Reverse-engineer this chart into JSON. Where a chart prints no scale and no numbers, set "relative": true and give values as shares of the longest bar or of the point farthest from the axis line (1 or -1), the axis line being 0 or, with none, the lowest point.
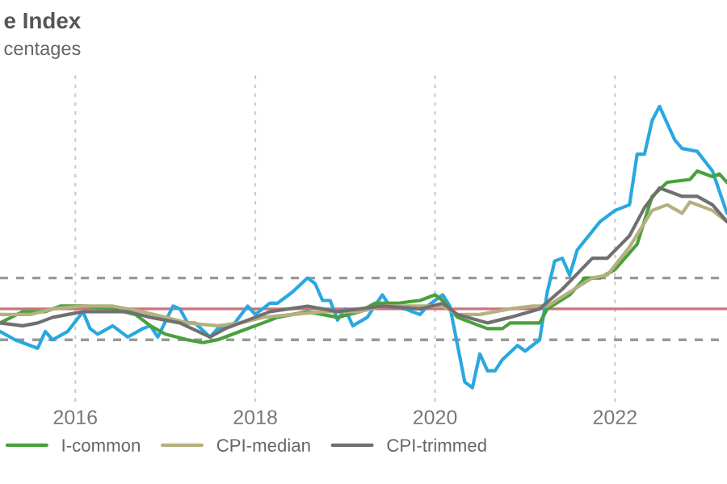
{
  "chart_data": {
    "type": "line",
    "title": "e Index",
    "subtitle": "centages",
    "relative": true,
    "xlim": [
      "2015-03",
      "2023-04"
    ],
    "xticks": [
      {
        "value": "2016-01",
        "label": "2016"
      },
      {
        "value": "2018-01",
        "label": "2018"
      },
      {
        "value": "2020-01",
        "label": "2020"
      },
      {
        "value": "2022-01",
        "label": "2022"
      }
    ],
    "grid": "x",
    "legend": "bottom",
    "marker": "none",
    "line_style": "solid",
    "ref_lines": [
      {
        "axis": "y",
        "value": 0.39,
        "label": null,
        "color": "#999999",
        "line_style": "dashed"
      },
      {
        "axis": "y",
        "value": 0.17,
        "label": null,
        "color": "#999999",
        "line_style": "dashed"
      },
      {
        "axis": "y",
        "value": 0.28,
        "label": null,
        "color": "#d0707f",
        "line_style": "solid"
      }
    ],
    "series": [
      {
        "color": "#29a8e0",
        "x": [
          "2015-03",
          "2015-05",
          "2015-08",
          "2015-09",
          "2015-10",
          "2015-12",
          "2016-02",
          "2016-03",
          "2016-04",
          "2016-06",
          "2016-08",
          "2016-10",
          "2016-11",
          "2016-12",
          "2017-02",
          "2017-03",
          "2017-04",
          "2017-05",
          "2017-07",
          "2017-08",
          "2017-10",
          "2017-12",
          "2018-01",
          "2018-03",
          "2018-04",
          "2018-06",
          "2018-08",
          "2018-09",
          "2018-10",
          "2018-11",
          "2018-12",
          "2019-01",
          "2019-02",
          "2019-04",
          "2019-05",
          "2019-06",
          "2019-07",
          "2019-09",
          "2019-11",
          "2019-12",
          "2020-02",
          "2020-03",
          "2020-05",
          "2020-06",
          "2020-07",
          "2020-08",
          "2020-09",
          "2020-10",
          "2020-12",
          "2021-01",
          "2021-03",
          "2021-04",
          "2021-05",
          "2021-06",
          "2021-07",
          "2021-08",
          "2021-11",
          "2022-01",
          "2022-03",
          "2022-04",
          "2022-05",
          "2022-06",
          "2022-07",
          "2022-09",
          "2022-10",
          "2022-12",
          "2023-02",
          "2023-04"
        ],
        "values": [
          0.2,
          0.17,
          0.14,
          0.2,
          0.17,
          0.2,
          0.27,
          0.21,
          0.19,
          0.22,
          0.18,
          0.21,
          0.22,
          0.18,
          0.29,
          0.28,
          0.23,
          0.23,
          0.18,
          0.21,
          0.22,
          0.29,
          0.26,
          0.3,
          0.3,
          0.34,
          0.39,
          0.37,
          0.31,
          0.31,
          0.24,
          0.28,
          0.22,
          0.25,
          0.29,
          0.33,
          0.29,
          0.28,
          0.26,
          0.29,
          0.33,
          0.29,
          0.02,
          0.0,
          0.12,
          0.06,
          0.06,
          0.1,
          0.15,
          0.13,
          0.17,
          0.34,
          0.45,
          0.46,
          0.4,
          0.49,
          0.59,
          0.63,
          0.65,
          0.83,
          0.83,
          0.95,
          1.0,
          0.88,
          0.85,
          0.84,
          0.77,
          0.62
        ]
      },
      {
        "name": "I-common",
        "color": "#4aa03c",
        "x": [
          "2015-03",
          "2015-06",
          "2015-09",
          "2015-11",
          "2016-02",
          "2016-06",
          "2016-09",
          "2016-11",
          "2017-01",
          "2017-04",
          "2017-06",
          "2017-08",
          "2017-11",
          "2018-02",
          "2018-04",
          "2018-08",
          "2018-12",
          "2019-03",
          "2019-05",
          "2019-08",
          "2019-11",
          "2020-01",
          "2020-02",
          "2020-04",
          "2020-07",
          "2020-08",
          "2020-10",
          "2020-11",
          "2021-01",
          "2021-03",
          "2021-04",
          "2021-07",
          "2021-09",
          "2021-11",
          "2022-01",
          "2022-04",
          "2022-06",
          "2022-08",
          "2022-11",
          "2022-12",
          "2023-02",
          "2023-03",
          "2023-04"
        ],
        "values": [
          0.23,
          0.27,
          0.27,
          0.29,
          0.29,
          0.28,
          0.26,
          0.22,
          0.19,
          0.17,
          0.16,
          0.17,
          0.2,
          0.23,
          0.25,
          0.27,
          0.25,
          0.27,
          0.3,
          0.3,
          0.31,
          0.33,
          0.31,
          0.25,
          0.22,
          0.21,
          0.21,
          0.23,
          0.23,
          0.23,
          0.28,
          0.33,
          0.39,
          0.39,
          0.42,
          0.51,
          0.68,
          0.73,
          0.74,
          0.77,
          0.75,
          0.76,
          0.73
        ]
      },
      {
        "name": "CPI-median",
        "color": "#b5b07f",
        "x": [
          "2015-03",
          "2015-07",
          "2015-10",
          "2016-02",
          "2016-06",
          "2016-10",
          "2017-01",
          "2017-04",
          "2017-08",
          "2017-11",
          "2018-02",
          "2018-06",
          "2018-10",
          "2019-03",
          "2019-06",
          "2019-11",
          "2020-02",
          "2020-04",
          "2020-07",
          "2020-11",
          "2021-02",
          "2021-04",
          "2021-07",
          "2021-10",
          "2021-12",
          "2022-03",
          "2022-06",
          "2022-08",
          "2022-10",
          "2022-11",
          "2023-02",
          "2023-04"
        ],
        "values": [
          0.26,
          0.26,
          0.28,
          0.29,
          0.29,
          0.27,
          0.25,
          0.23,
          0.22,
          0.23,
          0.25,
          0.26,
          0.27,
          0.27,
          0.29,
          0.29,
          0.29,
          0.26,
          0.26,
          0.28,
          0.29,
          0.29,
          0.34,
          0.39,
          0.4,
          0.5,
          0.63,
          0.65,
          0.62,
          0.66,
          0.63,
          0.59
        ]
      },
      {
        "name": "CPI-trimmed",
        "color": "#707070",
        "x": [
          "2015-03",
          "2015-06",
          "2015-08",
          "2015-10",
          "2016-02",
          "2016-06",
          "2016-08",
          "2016-11",
          "2017-03",
          "2017-07",
          "2017-09",
          "2017-12",
          "2018-03",
          "2018-08",
          "2018-12",
          "2019-03",
          "2019-06",
          "2019-11",
          "2020-02",
          "2020-04",
          "2020-08",
          "2020-11",
          "2021-03",
          "2021-06",
          "2021-10",
          "2021-12",
          "2022-03",
          "2022-05",
          "2022-07",
          "2022-10",
          "2022-12",
          "2023-02",
          "2023-04"
        ],
        "values": [
          0.23,
          0.22,
          0.23,
          0.25,
          0.27,
          0.27,
          0.27,
          0.25,
          0.23,
          0.18,
          0.21,
          0.24,
          0.27,
          0.29,
          0.27,
          0.28,
          0.29,
          0.28,
          0.3,
          0.26,
          0.23,
          0.25,
          0.28,
          0.35,
          0.46,
          0.46,
          0.54,
          0.64,
          0.71,
          0.68,
          0.68,
          0.65,
          0.59
        ]
      }
    ]
  }
}
